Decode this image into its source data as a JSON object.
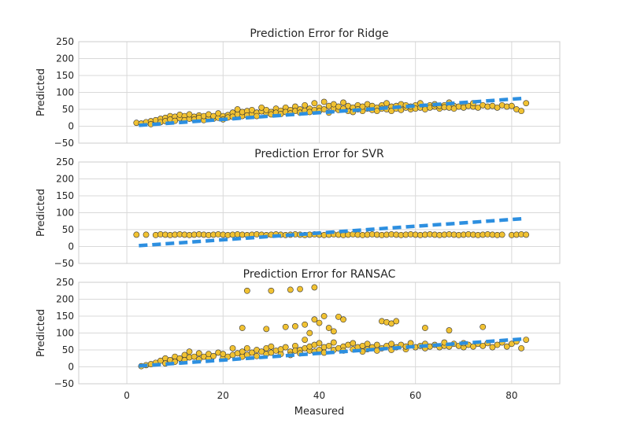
{
  "colors": {
    "point_fill": "#f1c232",
    "point_edge": "#333333",
    "identity_line": "#2d8fe0",
    "grid": "#d9d9d9",
    "frame": "#cccccc"
  },
  "chart_data": [
    {
      "type": "scatter",
      "title": "Prediction Error for Ridge",
      "xlabel": "",
      "ylabel": "Predicted",
      "xlim": [
        -10,
        90
      ],
      "ylim": [
        -50,
        250
      ],
      "xticks": [
        0,
        20,
        40,
        60,
        80
      ],
      "yticks": [
        -50,
        0,
        50,
        100,
        150,
        200,
        250
      ],
      "grid": true,
      "identity_line": {
        "x": [
          2.5,
          82
        ],
        "y": [
          2.5,
          82
        ]
      },
      "points": [
        [
          2,
          10
        ],
        [
          3,
          8
        ],
        [
          4,
          12
        ],
        [
          5,
          15
        ],
        [
          5,
          6
        ],
        [
          6,
          18
        ],
        [
          7,
          22
        ],
        [
          7,
          12
        ],
        [
          8,
          25
        ],
        [
          8,
          15
        ],
        [
          9,
          30
        ],
        [
          9,
          20
        ],
        [
          10,
          28
        ],
        [
          10,
          16
        ],
        [
          11,
          24
        ],
        [
          11,
          34
        ],
        [
          12,
          30
        ],
        [
          12,
          18
        ],
        [
          13,
          22
        ],
        [
          13,
          35
        ],
        [
          14,
          28
        ],
        [
          14,
          20
        ],
        [
          15,
          32
        ],
        [
          15,
          25
        ],
        [
          16,
          18
        ],
        [
          16,
          30
        ],
        [
          17,
          27
        ],
        [
          17,
          35
        ],
        [
          18,
          22
        ],
        [
          18,
          30
        ],
        [
          19,
          25
        ],
        [
          19,
          38
        ],
        [
          20,
          30
        ],
        [
          20,
          20
        ],
        [
          21,
          33
        ],
        [
          21,
          26
        ],
        [
          22,
          40
        ],
        [
          22,
          28
        ],
        [
          23,
          35
        ],
        [
          23,
          50
        ],
        [
          24,
          30
        ],
        [
          24,
          42
        ],
        [
          25,
          45
        ],
        [
          25,
          32
        ],
        [
          26,
          36
        ],
        [
          26,
          48
        ],
        [
          27,
          40
        ],
        [
          27,
          30
        ],
        [
          28,
          44
        ],
        [
          28,
          55
        ],
        [
          29,
          38
        ],
        [
          29,
          48
        ],
        [
          30,
          42
        ],
        [
          30,
          35
        ],
        [
          31,
          52
        ],
        [
          31,
          40
        ],
        [
          32,
          46
        ],
        [
          32,
          36
        ],
        [
          33,
          55
        ],
        [
          33,
          42
        ],
        [
          34,
          48
        ],
        [
          34,
          38
        ],
        [
          35,
          58
        ],
        [
          35,
          45
        ],
        [
          36,
          50
        ],
        [
          36,
          40
        ],
        [
          37,
          62
        ],
        [
          37,
          46
        ],
        [
          38,
          52
        ],
        [
          38,
          42
        ],
        [
          39,
          68
        ],
        [
          39,
          48
        ],
        [
          40,
          55
        ],
        [
          40,
          45
        ],
        [
          41,
          72
        ],
        [
          41,
          50
        ],
        [
          42,
          60
        ],
        [
          42,
          40
        ],
        [
          43,
          52
        ],
        [
          43,
          65
        ],
        [
          44,
          48
        ],
        [
          44,
          58
        ],
        [
          45,
          70
        ],
        [
          45,
          52
        ],
        [
          46,
          45
        ],
        [
          46,
          60
        ],
        [
          47,
          55
        ],
        [
          47,
          42
        ],
        [
          48,
          62
        ],
        [
          48,
          50
        ],
        [
          49,
          45
        ],
        [
          49,
          58
        ],
        [
          50,
          52
        ],
        [
          50,
          65
        ],
        [
          51,
          48
        ],
        [
          51,
          60
        ],
        [
          52,
          55
        ],
        [
          52,
          45
        ],
        [
          53,
          62
        ],
        [
          53,
          52
        ],
        [
          54,
          68
        ],
        [
          54,
          50
        ],
        [
          55,
          58
        ],
        [
          55,
          45
        ],
        [
          56,
          60
        ],
        [
          56,
          52
        ],
        [
          57,
          65
        ],
        [
          57,
          48
        ],
        [
          58,
          55
        ],
        [
          58,
          62
        ],
        [
          59,
          50
        ],
        [
          59,
          58
        ],
        [
          60,
          62
        ],
        [
          60,
          52
        ],
        [
          61,
          55
        ],
        [
          61,
          68
        ],
        [
          62,
          58
        ],
        [
          62,
          50
        ],
        [
          63,
          62
        ],
        [
          63,
          55
        ],
        [
          64,
          58
        ],
        [
          64,
          65
        ],
        [
          65,
          52
        ],
        [
          65,
          60
        ],
        [
          66,
          62
        ],
        [
          66,
          56
        ],
        [
          67,
          70
        ],
        [
          67,
          55
        ],
        [
          68,
          60
        ],
        [
          68,
          52
        ],
        [
          69,
          58
        ],
        [
          70,
          65
        ],
        [
          70,
          55
        ],
        [
          71,
          60
        ],
        [
          72,
          58
        ],
        [
          72,
          68
        ],
        [
          73,
          55
        ],
        [
          74,
          62
        ],
        [
          75,
          58
        ],
        [
          76,
          60
        ],
        [
          77,
          55
        ],
        [
          78,
          62
        ],
        [
          79,
          58
        ],
        [
          80,
          60
        ],
        [
          81,
          50
        ],
        [
          82,
          45
        ],
        [
          83,
          68
        ]
      ]
    },
    {
      "type": "scatter",
      "title": "Prediction Error for SVR",
      "xlabel": "",
      "ylabel": "Predicted",
      "xlim": [
        -10,
        90
      ],
      "ylim": [
        -50,
        250
      ],
      "xticks": [
        0,
        20,
        40,
        60,
        80
      ],
      "yticks": [
        -50,
        0,
        50,
        100,
        150,
        200,
        250
      ],
      "grid": true,
      "identity_line": {
        "x": [
          2.5,
          82
        ],
        "y": [
          2.5,
          82
        ]
      },
      "points": [
        [
          2,
          35
        ],
        [
          4,
          35
        ],
        [
          6,
          34
        ],
        [
          7,
          36
        ],
        [
          8,
          35
        ],
        [
          9,
          34
        ],
        [
          10,
          35
        ],
        [
          11,
          36
        ],
        [
          12,
          35
        ],
        [
          13,
          34
        ],
        [
          14,
          35
        ],
        [
          15,
          36
        ],
        [
          16,
          35
        ],
        [
          17,
          34
        ],
        [
          18,
          35
        ],
        [
          19,
          36
        ],
        [
          20,
          35
        ],
        [
          21,
          34
        ],
        [
          22,
          35
        ],
        [
          23,
          36
        ],
        [
          24,
          35
        ],
        [
          25,
          34
        ],
        [
          26,
          35
        ],
        [
          27,
          36
        ],
        [
          28,
          35
        ],
        [
          29,
          34
        ],
        [
          30,
          35
        ],
        [
          31,
          36
        ],
        [
          32,
          35
        ],
        [
          33,
          34
        ],
        [
          34,
          35
        ],
        [
          35,
          36
        ],
        [
          36,
          35
        ],
        [
          37,
          34
        ],
        [
          38,
          35
        ],
        [
          39,
          36
        ],
        [
          40,
          35
        ],
        [
          41,
          34
        ],
        [
          42,
          35
        ],
        [
          43,
          36
        ],
        [
          44,
          35
        ],
        [
          45,
          34
        ],
        [
          46,
          35
        ],
        [
          47,
          36
        ],
        [
          48,
          35
        ],
        [
          49,
          34
        ],
        [
          50,
          35
        ],
        [
          51,
          36
        ],
        [
          52,
          35
        ],
        [
          53,
          34
        ],
        [
          54,
          35
        ],
        [
          55,
          36
        ],
        [
          56,
          35
        ],
        [
          57,
          34
        ],
        [
          58,
          35
        ],
        [
          59,
          36
        ],
        [
          60,
          35
        ],
        [
          61,
          34
        ],
        [
          62,
          35
        ],
        [
          63,
          36
        ],
        [
          64,
          35
        ],
        [
          65,
          34
        ],
        [
          66,
          35
        ],
        [
          67,
          36
        ],
        [
          68,
          35
        ],
        [
          69,
          34
        ],
        [
          70,
          35
        ],
        [
          71,
          36
        ],
        [
          72,
          35
        ],
        [
          73,
          34
        ],
        [
          74,
          35
        ],
        [
          75,
          36
        ],
        [
          76,
          35
        ],
        [
          77,
          34
        ],
        [
          78,
          35
        ],
        [
          80,
          34
        ],
        [
          81,
          35
        ],
        [
          82,
          36
        ],
        [
          83,
          35
        ]
      ]
    },
    {
      "type": "scatter",
      "title": "Prediction Error for RANSAC",
      "xlabel": "Measured",
      "ylabel": "Predicted",
      "xlim": [
        -10,
        90
      ],
      "ylim": [
        -50,
        250
      ],
      "xticks": [
        0,
        20,
        40,
        60,
        80
      ],
      "yticks": [
        -50,
        0,
        50,
        100,
        150,
        200,
        250
      ],
      "grid": true,
      "identity_line": {
        "x": [
          2.5,
          82
        ],
        "y": [
          2.5,
          82
        ]
      },
      "points": [
        [
          3,
          2
        ],
        [
          4,
          5
        ],
        [
          5,
          8
        ],
        [
          6,
          12
        ],
        [
          7,
          18
        ],
        [
          8,
          25
        ],
        [
          8,
          10
        ],
        [
          9,
          20
        ],
        [
          10,
          30
        ],
        [
          10,
          15
        ],
        [
          11,
          25
        ],
        [
          12,
          35
        ],
        [
          12,
          20
        ],
        [
          13,
          45
        ],
        [
          13,
          28
        ],
        [
          14,
          30
        ],
        [
          15,
          22
        ],
        [
          15,
          40
        ],
        [
          16,
          30
        ],
        [
          17,
          25
        ],
        [
          17,
          38
        ],
        [
          18,
          32
        ],
        [
          19,
          42
        ],
        [
          20,
          28
        ],
        [
          20,
          38
        ],
        [
          21,
          30
        ],
        [
          22,
          55
        ],
        [
          22,
          35
        ],
        [
          23,
          40
        ],
        [
          24,
          30
        ],
        [
          24,
          45
        ],
        [
          25,
          55
        ],
        [
          25,
          35
        ],
        [
          26,
          42
        ],
        [
          27,
          50
        ],
        [
          27,
          32
        ],
        [
          28,
          45
        ],
        [
          29,
          38
        ],
        [
          29,
          55
        ],
        [
          30,
          42
        ],
        [
          30,
          60
        ],
        [
          31,
          48
        ],
        [
          32,
          38
        ],
        [
          32,
          52
        ],
        [
          33,
          58
        ],
        [
          34,
          45
        ],
        [
          34,
          35
        ],
        [
          35,
          62
        ],
        [
          35,
          48
        ],
        [
          36,
          50
        ],
        [
          36,
          40
        ],
        [
          37,
          55
        ],
        [
          37,
          80
        ],
        [
          38,
          48
        ],
        [
          38,
          60
        ],
        [
          39,
          65
        ],
        [
          39,
          45
        ],
        [
          40,
          70
        ],
        [
          40,
          50
        ],
        [
          41,
          58
        ],
        [
          41,
          42
        ],
        [
          42,
          62
        ],
        [
          43,
          50
        ],
        [
          43,
          72
        ],
        [
          44,
          55
        ],
        [
          45,
          60
        ],
        [
          45,
          48
        ],
        [
          46,
          65
        ],
        [
          47,
          52
        ],
        [
          47,
          70
        ],
        [
          48,
          58
        ],
        [
          49,
          45
        ],
        [
          49,
          62
        ],
        [
          50,
          68
        ],
        [
          50,
          52
        ],
        [
          51,
          58
        ],
        [
          52,
          48
        ],
        [
          52,
          65
        ],
        [
          53,
          55
        ],
        [
          54,
          62
        ],
        [
          55,
          50
        ],
        [
          55,
          68
        ],
        [
          56,
          58
        ],
        [
          57,
          65
        ],
        [
          58,
          52
        ],
        [
          58,
          60
        ],
        [
          59,
          70
        ],
        [
          60,
          58
        ],
        [
          61,
          62
        ],
        [
          62,
          55
        ],
        [
          62,
          68
        ],
        [
          63,
          60
        ],
        [
          64,
          65
        ],
        [
          65,
          58
        ],
        [
          66,
          62
        ],
        [
          66,
          72
        ],
        [
          67,
          60
        ],
        [
          68,
          68
        ],
        [
          69,
          62
        ],
        [
          70,
          58
        ],
        [
          70,
          70
        ],
        [
          71,
          65
        ],
        [
          72,
          60
        ],
        [
          73,
          68
        ],
        [
          74,
          62
        ],
        [
          75,
          70
        ],
        [
          76,
          58
        ],
        [
          77,
          65
        ],
        [
          78,
          72
        ],
        [
          79,
          60
        ],
        [
          80,
          68
        ],
        [
          81,
          75
        ],
        [
          82,
          55
        ],
        [
          83,
          80
        ],
        [
          25,
          225
        ],
        [
          30,
          225
        ],
        [
          34,
          228
        ],
        [
          36,
          230
        ],
        [
          39,
          235
        ],
        [
          24,
          115
        ],
        [
          29,
          112
        ],
        [
          33,
          118
        ],
        [
          35,
          120
        ],
        [
          37,
          125
        ],
        [
          38,
          100
        ],
        [
          39,
          140
        ],
        [
          40,
          130
        ],
        [
          41,
          150
        ],
        [
          42,
          115
        ],
        [
          43,
          105
        ],
        [
          44,
          148
        ],
        [
          45,
          140
        ],
        [
          53,
          135
        ],
        [
          54,
          132
        ],
        [
          55,
          128
        ],
        [
          56,
          135
        ],
        [
          62,
          115
        ],
        [
          67,
          108
        ],
        [
          74,
          118
        ]
      ]
    }
  ]
}
